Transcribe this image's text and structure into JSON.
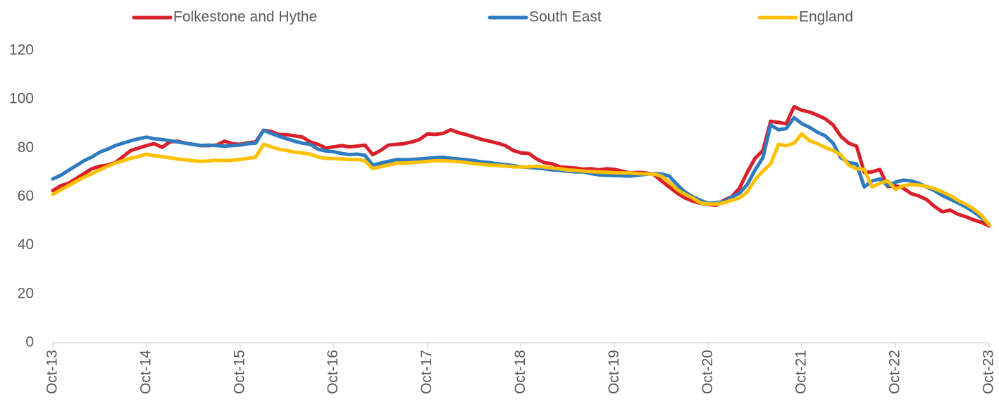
{
  "chart_data": {
    "type": "line",
    "categories": [
      "Oct-13",
      null,
      null,
      null,
      null,
      null,
      null,
      null,
      null,
      null,
      null,
      null,
      "Oct-14",
      null,
      null,
      null,
      null,
      null,
      null,
      null,
      null,
      null,
      null,
      null,
      "Oct-15",
      null,
      null,
      null,
      null,
      null,
      null,
      null,
      null,
      null,
      null,
      null,
      "Oct-16",
      null,
      null,
      null,
      null,
      null,
      null,
      null,
      null,
      null,
      null,
      null,
      "Oct-17",
      null,
      null,
      null,
      null,
      null,
      null,
      null,
      null,
      null,
      null,
      null,
      "Oct-18",
      null,
      null,
      null,
      null,
      null,
      null,
      null,
      null,
      null,
      null,
      null,
      "Oct-19",
      null,
      null,
      null,
      null,
      null,
      null,
      null,
      null,
      null,
      null,
      null,
      "Oct-20",
      null,
      null,
      null,
      null,
      null,
      null,
      null,
      null,
      null,
      null,
      null,
      "Oct-21",
      null,
      null,
      null,
      null,
      null,
      null,
      null,
      null,
      null,
      null,
      null,
      "Oct-22",
      null,
      null,
      null,
      null,
      null,
      null,
      null,
      null,
      null,
      null,
      null,
      "Oct-23"
    ],
    "series": [
      {
        "name": "Folkestone and Hythe",
        "color": "#d9202a",
        "values": [
          62.5,
          64.5,
          65.5,
          67.5,
          69.5,
          71.5,
          72.5,
          73,
          74,
          76.5,
          79,
          80,
          81,
          81.8,
          80.3,
          82.5,
          82.8,
          82,
          81.5,
          81,
          81,
          81.2,
          82.8,
          81.8,
          81.5,
          82.2,
          82.5,
          87.3,
          86.8,
          85.5,
          85.5,
          85,
          84.5,
          82.5,
          81.5,
          80,
          80.5,
          81,
          80.5,
          80.8,
          81.2,
          77.3,
          79,
          81.2,
          81.5,
          81.8,
          82.5,
          83.5,
          85.8,
          85.6,
          86,
          87.5,
          86.3,
          85.5,
          84.5,
          83.5,
          82.8,
          82,
          81,
          79,
          78,
          77.8,
          75.5,
          74,
          73.5,
          72.3,
          72,
          71.8,
          71.3,
          71.5,
          71,
          71.5,
          71.2,
          70.5,
          69.8,
          70,
          69.8,
          69.2,
          66.5,
          64,
          61.5,
          59.5,
          58.2,
          57.3,
          56.8,
          56.5,
          58.5,
          60,
          63.5,
          70,
          75.8,
          79,
          91,
          90.5,
          90,
          97,
          95.5,
          94.8,
          93.5,
          92,
          89.5,
          84.8,
          82,
          80.8,
          70,
          70.2,
          71.2,
          64.2,
          64.5,
          63.5,
          61.3,
          60.3,
          58.8,
          56,
          53.8,
          54.5,
          52.8,
          51.8,
          50.5,
          49.5,
          48
        ]
      },
      {
        "name": "South East",
        "color": "#2e7bbf",
        "values": [
          67.3,
          68.8,
          70.8,
          72.8,
          74.8,
          76.3,
          78.3,
          79.5,
          81,
          82,
          83,
          83.8,
          84.5,
          83.8,
          83.5,
          83,
          82.5,
          82,
          81.5,
          81,
          81.2,
          81,
          80.8,
          81,
          81.2,
          81.8,
          82,
          87.3,
          86,
          84.8,
          83.8,
          82.8,
          82,
          81.5,
          79.5,
          78.8,
          78.5,
          77.8,
          77.3,
          77.5,
          77,
          73,
          73.8,
          74.5,
          75.2,
          75.2,
          75.3,
          75.5,
          75.8,
          76,
          76.2,
          75.8,
          75.5,
          75.2,
          74.8,
          74.3,
          74,
          73.5,
          73.2,
          72.8,
          72.3,
          72,
          71.8,
          71.5,
          71,
          70.8,
          70.5,
          70.2,
          70.2,
          69.5,
          69,
          68.8,
          68.7,
          68.6,
          68.5,
          68.8,
          69.2,
          69.5,
          69.3,
          68.5,
          65,
          62,
          60,
          58.5,
          57.3,
          57.5,
          58,
          59.8,
          61.5,
          65,
          71,
          76,
          89.5,
          87.5,
          88,
          92.5,
          90,
          88.5,
          86.5,
          85,
          82,
          76,
          74,
          73.5,
          64,
          66.5,
          67.3,
          64.5,
          66,
          66.8,
          66.5,
          65.5,
          64,
          62.5,
          60.5,
          59,
          57.5,
          55.8,
          53.8,
          51.5,
          48.8
        ]
      },
      {
        "name": "England",
        "color": "#ffc000",
        "values": [
          61,
          62.8,
          64.5,
          66.3,
          68,
          69.5,
          71,
          72.5,
          73.8,
          74.8,
          75.8,
          76.5,
          77.5,
          76.8,
          76.5,
          76,
          75.5,
          75.2,
          74.8,
          74.5,
          74.7,
          75,
          74.8,
          75,
          75.3,
          75.8,
          76.2,
          81.5,
          80.5,
          79.5,
          79,
          78.3,
          78,
          77.5,
          76.3,
          75.8,
          75.7,
          75.5,
          75.3,
          75.3,
          74.8,
          71.5,
          72.3,
          73,
          73.8,
          73.8,
          74,
          74.2,
          74.5,
          74.8,
          74.8,
          74.6,
          74.4,
          74,
          73.6,
          73.3,
          73,
          72.8,
          72.6,
          72.3,
          72.2,
          72.3,
          72.5,
          72.2,
          71.8,
          71.5,
          71,
          70.8,
          70.5,
          70.3,
          70.2,
          70,
          69.8,
          69.8,
          69.8,
          69.5,
          69.4,
          69.3,
          68.5,
          66,
          63,
          61,
          59.5,
          57.5,
          57,
          57,
          57.5,
          58.5,
          59.5,
          62,
          67,
          70.5,
          73.5,
          81.5,
          81,
          82,
          85.8,
          83,
          81.8,
          80.2,
          79,
          77.2,
          73,
          71.5,
          71.2,
          64,
          65.5,
          66.5,
          63,
          64.5,
          65,
          64.8,
          64.2,
          63.3,
          62,
          60.5,
          58.5,
          57,
          55,
          52.5,
          48.5
        ]
      }
    ],
    "ylim": [
      0,
      120
    ],
    "yticks": [
      0,
      20,
      40,
      60,
      80,
      100,
      120
    ],
    "grid": false,
    "legend": "top"
  }
}
